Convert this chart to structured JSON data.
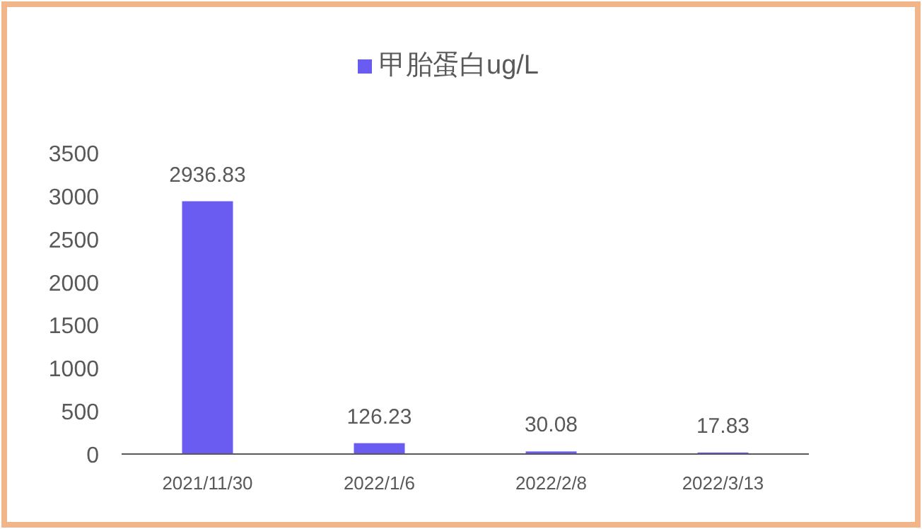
{
  "chart_data": {
    "type": "bar",
    "categories": [
      "2021/11/30",
      "2022/1/6",
      "2022/2/8",
      "2022/3/13"
    ],
    "series": [
      {
        "name": "甲胎蛋白ug/L",
        "color": "#6a5cf0",
        "values": [
          2936.83,
          126.23,
          30.08,
          17.83
        ]
      }
    ],
    "ylim": [
      0,
      3500
    ],
    "yticks": [
      0,
      500,
      1000,
      1500,
      2000,
      2500,
      3000,
      3500
    ],
    "data_labels": true,
    "legend": "top",
    "grid": false
  }
}
